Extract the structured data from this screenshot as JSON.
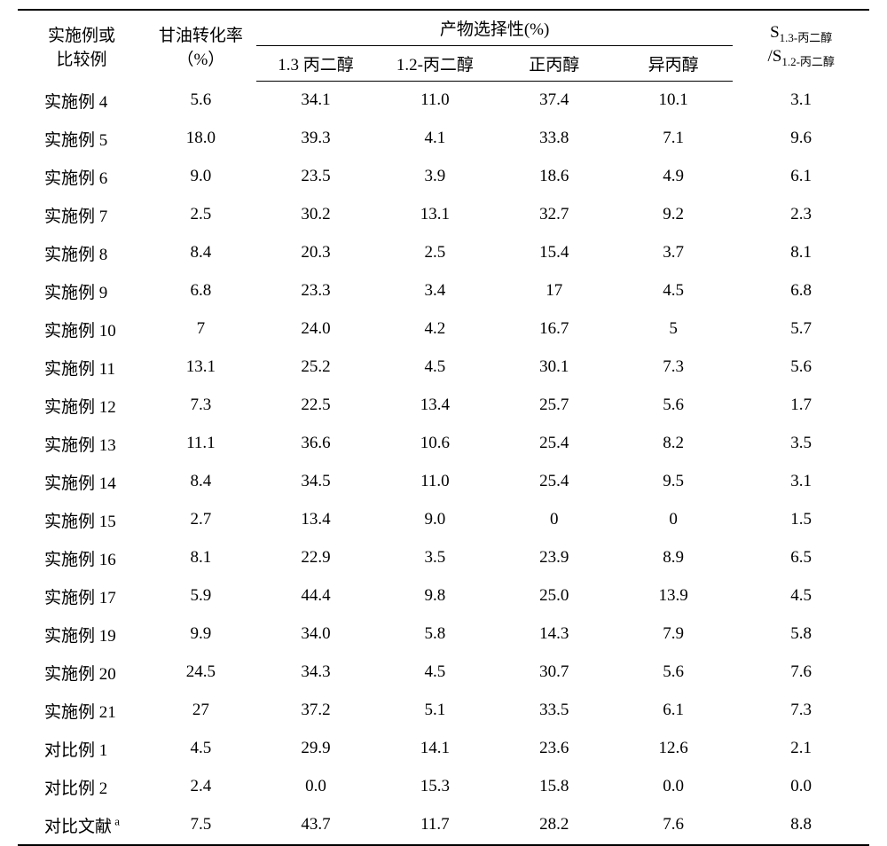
{
  "table": {
    "headers": {
      "col0_line1": "实施例或",
      "col0_line2": "比较例",
      "col1_line1": "甘油转化率",
      "col1_line2": "（%）",
      "selectivity_header": "产物选择性(%)",
      "sub0": "1.3 丙二醇",
      "sub1": "1.2-丙二醇",
      "sub2": "正丙醇",
      "sub3": "异丙醇",
      "ratio_num_prefix": "S",
      "ratio_num_sub": "1.3-丙二醇",
      "ratio_denom_prefix": "/S",
      "ratio_denom_sub": "1.2-丙二醇"
    },
    "rows": [
      {
        "label": "实施例 4",
        "conv": "5.6",
        "s13": "34.1",
        "s12": "11.0",
        "npoh": "37.4",
        "ipoh": "10.1",
        "ratio": "3.1"
      },
      {
        "label": "实施例 5",
        "conv": "18.0",
        "s13": "39.3",
        "s12": "4.1",
        "npoh": "33.8",
        "ipoh": "7.1",
        "ratio": "9.6"
      },
      {
        "label": "实施例 6",
        "conv": "9.0",
        "s13": "23.5",
        "s12": "3.9",
        "npoh": "18.6",
        "ipoh": "4.9",
        "ratio": "6.1"
      },
      {
        "label": "实施例 7",
        "conv": "2.5",
        "s13": "30.2",
        "s12": "13.1",
        "npoh": "32.7",
        "ipoh": "9.2",
        "ratio": "2.3"
      },
      {
        "label": "实施例 8",
        "conv": "8.4",
        "s13": "20.3",
        "s12": "2.5",
        "npoh": "15.4",
        "ipoh": "3.7",
        "ratio": "8.1"
      },
      {
        "label": "实施例 9",
        "conv": "6.8",
        "s13": "23.3",
        "s12": "3.4",
        "npoh": "17",
        "ipoh": "4.5",
        "ratio": "6.8"
      },
      {
        "label": "实施例 10",
        "conv": "7",
        "s13": "24.0",
        "s12": "4.2",
        "npoh": "16.7",
        "ipoh": "5",
        "ratio": "5.7"
      },
      {
        "label": "实施例 11",
        "conv": "13.1",
        "s13": "25.2",
        "s12": "4.5",
        "npoh": "30.1",
        "ipoh": "7.3",
        "ratio": "5.6"
      },
      {
        "label": "实施例 12",
        "conv": "7.3",
        "s13": "22.5",
        "s12": "13.4",
        "npoh": "25.7",
        "ipoh": "5.6",
        "ratio": "1.7"
      },
      {
        "label": "实施例 13",
        "conv": "11.1",
        "s13": "36.6",
        "s12": "10.6",
        "npoh": "25.4",
        "ipoh": "8.2",
        "ratio": "3.5"
      },
      {
        "label": "实施例 14",
        "conv": "8.4",
        "s13": "34.5",
        "s12": "11.0",
        "npoh": "25.4",
        "ipoh": "9.5",
        "ratio": "3.1"
      },
      {
        "label": "实施例 15",
        "conv": "2.7",
        "s13": "13.4",
        "s12": "9.0",
        "npoh": "0",
        "ipoh": "0",
        "ratio": "1.5"
      },
      {
        "label": "实施例 16",
        "conv": "8.1",
        "s13": "22.9",
        "s12": "3.5",
        "npoh": "23.9",
        "ipoh": "8.9",
        "ratio": "6.5"
      },
      {
        "label": "实施例 17",
        "conv": "5.9",
        "s13": "44.4",
        "s12": "9.8",
        "npoh": "25.0",
        "ipoh": "13.9",
        "ratio": "4.5"
      },
      {
        "label": "实施例 19",
        "conv": "9.9",
        "s13": "34.0",
        "s12": "5.8",
        "npoh": "14.3",
        "ipoh": "7.9",
        "ratio": "5.8"
      },
      {
        "label": "实施例 20",
        "conv": "24.5",
        "s13": "34.3",
        "s12": "4.5",
        "npoh": "30.7",
        "ipoh": "5.6",
        "ratio": "7.6"
      },
      {
        "label": "实施例 21",
        "conv": "27",
        "s13": "37.2",
        "s12": "5.1",
        "npoh": "33.5",
        "ipoh": "6.1",
        "ratio": "7.3"
      },
      {
        "label": "对比例 1",
        "conv": "4.5",
        "s13": "29.9",
        "s12": "14.1",
        "npoh": "23.6",
        "ipoh": "12.6",
        "ratio": "2.1"
      },
      {
        "label": "对比例 2",
        "conv": "2.4",
        "s13": "0.0",
        "s12": "15.3",
        "npoh": "15.8",
        "ipoh": "0.0",
        "ratio": "0.0"
      },
      {
        "label": "对比文献",
        "label_sup": "a",
        "conv": "7.5",
        "s13": "43.7",
        "s12": "11.7",
        "npoh": "28.2",
        "ipoh": "7.6",
        "ratio": "8.8"
      }
    ]
  },
  "style": {
    "background_color": "#ffffff",
    "text_color": "#000000",
    "font_family": "SimSun",
    "base_font_size": 19,
    "sub_font_size": 13,
    "border_color": "#000000",
    "top_border_width": 2,
    "inner_border_width": 1.5,
    "bottom_border_width": 2
  }
}
